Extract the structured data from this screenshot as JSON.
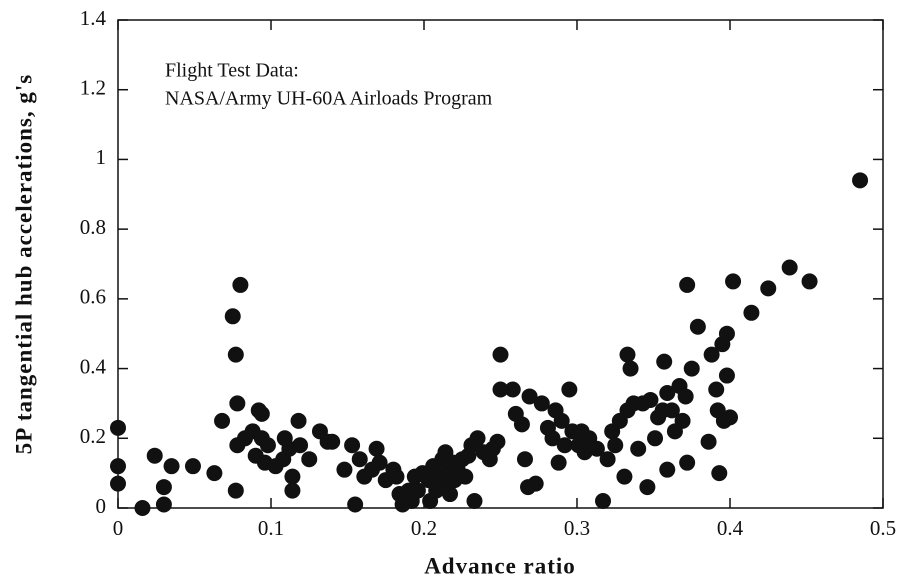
{
  "chart_data": {
    "type": "scatter",
    "annotations": [
      "Flight Test Data:",
      "NASA/Army UH-60A Airloads Program"
    ],
    "xlabel": "Advance ratio",
    "ylabel": "5P tangential hub accelerations, g's",
    "color": "#111111",
    "xlim": [
      0,
      0.5
    ],
    "xticks": [
      0,
      0.1,
      0.2,
      0.3,
      0.4,
      0.5
    ],
    "ylim": [
      0,
      1.4
    ],
    "yticks": [
      0,
      0.2,
      0.4,
      0.6,
      0.8,
      1,
      1.2,
      1.4
    ],
    "x": [
      0.0,
      0.0,
      0.0,
      0.016,
      0.024,
      0.03,
      0.03,
      0.035,
      0.049,
      0.063,
      0.068,
      0.075,
      0.077,
      0.08,
      0.077,
      0.078,
      0.078,
      0.083,
      0.088,
      0.092,
      0.094,
      0.09,
      0.094,
      0.098,
      0.096,
      0.103,
      0.108,
      0.109,
      0.112,
      0.114,
      0.114,
      0.118,
      0.119,
      0.125,
      0.132,
      0.137,
      0.14,
      0.148,
      0.153,
      0.155,
      0.158,
      0.161,
      0.166,
      0.169,
      0.171,
      0.175,
      0.18,
      0.182,
      0.184,
      0.186,
      0.19,
      0.192,
      0.194,
      0.196,
      0.199,
      0.203,
      0.204,
      0.206,
      0.208,
      0.209,
      0.212,
      0.213,
      0.214,
      0.216,
      0.217,
      0.219,
      0.22,
      0.222,
      0.225,
      0.227,
      0.229,
      0.231,
      0.233,
      0.235,
      0.239,
      0.243,
      0.245,
      0.248,
      0.25,
      0.25,
      0.258,
      0.26,
      0.264,
      0.266,
      0.268,
      0.269,
      0.273,
      0.277,
      0.281,
      0.284,
      0.286,
      0.288,
      0.29,
      0.292,
      0.295,
      0.297,
      0.301,
      0.303,
      0.305,
      0.308,
      0.313,
      0.317,
      0.32,
      0.323,
      0.325,
      0.328,
      0.331,
      0.333,
      0.333,
      0.335,
      0.337,
      0.34,
      0.343,
      0.346,
      0.348,
      0.351,
      0.353,
      0.356,
      0.357,
      0.359,
      0.359,
      0.362,
      0.364,
      0.367,
      0.369,
      0.371,
      0.372,
      0.372,
      0.375,
      0.379,
      0.386,
      0.388,
      0.391,
      0.392,
      0.393,
      0.395,
      0.396,
      0.398,
      0.398,
      0.4,
      0.402,
      0.414,
      0.425,
      0.439,
      0.452,
      0.485
    ],
    "values": [
      0.23,
      0.12,
      0.07,
      0.0,
      0.15,
      0.01,
      0.06,
      0.12,
      0.12,
      0.1,
      0.25,
      0.55,
      0.44,
      0.64,
      0.05,
      0.3,
      0.18,
      0.2,
      0.22,
      0.28,
      0.27,
      0.15,
      0.2,
      0.18,
      0.13,
      0.12,
      0.14,
      0.2,
      0.17,
      0.09,
      0.05,
      0.25,
      0.18,
      0.14,
      0.22,
      0.19,
      0.19,
      0.11,
      0.18,
      0.01,
      0.14,
      0.09,
      0.11,
      0.17,
      0.13,
      0.08,
      0.11,
      0.09,
      0.04,
      0.01,
      0.05,
      0.02,
      0.09,
      0.05,
      0.1,
      0.08,
      0.02,
      0.12,
      0.05,
      0.09,
      0.14,
      0.07,
      0.16,
      0.11,
      0.04,
      0.13,
      0.08,
      0.11,
      0.14,
      0.09,
      0.15,
      0.18,
      0.02,
      0.2,
      0.16,
      0.14,
      0.17,
      0.19,
      0.44,
      0.34,
      0.34,
      0.27,
      0.24,
      0.14,
      0.06,
      0.32,
      0.07,
      0.3,
      0.23,
      0.2,
      0.28,
      0.13,
      0.25,
      0.18,
      0.34,
      0.22,
      0.18,
      0.22,
      0.16,
      0.2,
      0.17,
      0.02,
      0.14,
      0.22,
      0.18,
      0.25,
      0.09,
      0.44,
      0.28,
      0.4,
      0.3,
      0.17,
      0.3,
      0.06,
      0.31,
      0.2,
      0.26,
      0.28,
      0.42,
      0.33,
      0.11,
      0.28,
      0.22,
      0.35,
      0.25,
      0.32,
      0.64,
      0.13,
      0.4,
      0.52,
      0.19,
      0.44,
      0.34,
      0.28,
      0.1,
      0.47,
      0.25,
      0.38,
      0.5,
      0.26,
      0.65,
      0.56,
      0.63,
      0.69,
      0.65,
      0.94
    ]
  }
}
